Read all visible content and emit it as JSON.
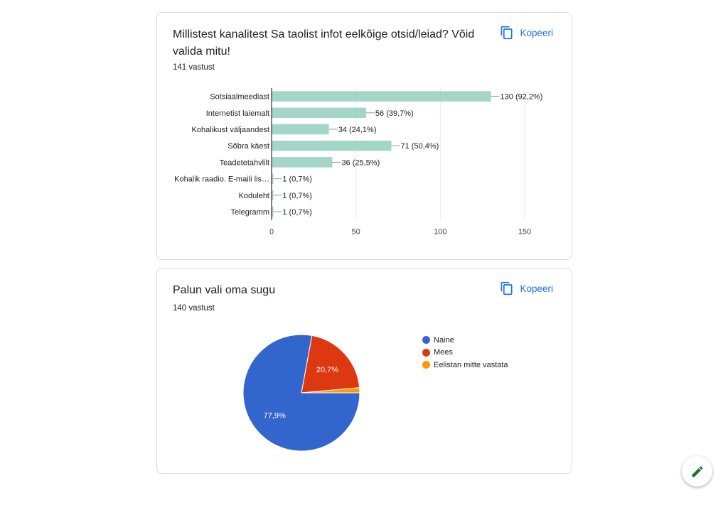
{
  "copy_label": "Kopeeri",
  "questions": [
    {
      "title": "Millistest kanalitest Sa taolist infot eelkõige otsid/leiad? Võid valida mitu!",
      "count": "141 vastust"
    },
    {
      "title": "Palun vali oma sugu",
      "count": "140 vastust"
    }
  ],
  "chart_data": [
    {
      "type": "bar",
      "orientation": "horizontal",
      "categories": [
        "Sotsiaalmeediast",
        "Internetist laiemalt",
        "Kohalikust väljaandest",
        "Sõbra käest",
        "Teadetetahvlilt",
        "Kohalik raadio. E-maili lis…",
        "Koduleht",
        "Telegramm"
      ],
      "values": [
        130,
        56,
        34,
        71,
        36,
        1,
        1,
        1
      ],
      "data_labels": [
        "130 (92,2%)",
        "56 (39,7%)",
        "34 (24,1%)",
        "71 (50,4%)",
        "36 (25,5%)",
        "1 (0,7%)",
        "1 (0,7%)",
        "1 (0,7%)"
      ],
      "xlim": [
        0,
        150
      ],
      "xticks": [
        0,
        50,
        100,
        150
      ],
      "xtick_labels": [
        "0",
        "50",
        "100",
        "150"
      ],
      "grid": true,
      "bar_color": "#a3d5c8"
    },
    {
      "type": "pie",
      "labels": [
        "Naine",
        "Mees",
        "Eelistan mitte vastata"
      ],
      "values": [
        77.9,
        20.7,
        1.4
      ],
      "slice_labels": [
        "77,9%",
        "20,7%",
        ""
      ],
      "colors": [
        "#3366cc",
        "#dc3912",
        "#ff9900"
      ],
      "legend": "right"
    }
  ]
}
